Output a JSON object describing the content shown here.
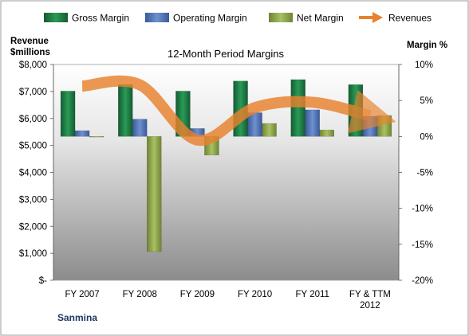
{
  "chart_data": {
    "type": "bar",
    "title": "12-Month Period Margins",
    "company": "Sanmina",
    "y_left_label_line1": "Revenue",
    "y_left_label_line2": "$millions",
    "y_right_label": "Margin %",
    "categories": [
      "FY 2007",
      "FY 2008",
      "FY 2009",
      "FY 2010",
      "FY 2011",
      "FY & TTM 2012"
    ],
    "y_left_ticks": [
      "$-",
      "$1,000",
      "$2,000",
      "$3,000",
      "$4,000",
      "$5,000",
      "$6,000",
      "$7,000",
      "$8,000"
    ],
    "y_right_ticks": [
      "-20%",
      "-15%",
      "-10%",
      "-5%",
      "0%",
      "5%",
      "10%"
    ],
    "ylim_left": [
      0,
      8000
    ],
    "ylim_right": [
      -20,
      10
    ],
    "legend_position": "top",
    "grid": false,
    "series": [
      {
        "name": "Gross Margin",
        "axis": "right",
        "color": "#1f7a45",
        "values": [
          6.3,
          7.2,
          6.3,
          7.7,
          7.9,
          7.2
        ]
      },
      {
        "name": "Operating Margin",
        "axis": "right",
        "color": "#4a6fb5",
        "values": [
          0.8,
          2.4,
          1.1,
          3.3,
          3.7,
          2.8
        ]
      },
      {
        "name": "Net Margin",
        "axis": "right",
        "color": "#8fa64a",
        "values": [
          0,
          -16.0,
          -2.6,
          1.8,
          0.9,
          2.9
        ]
      }
    ],
    "line_series": {
      "name": "Revenues",
      "axis": "left",
      "color": "#e8822e",
      "values": [
        7200,
        7250,
        5200,
        6400,
        6600,
        6100
      ]
    }
  }
}
